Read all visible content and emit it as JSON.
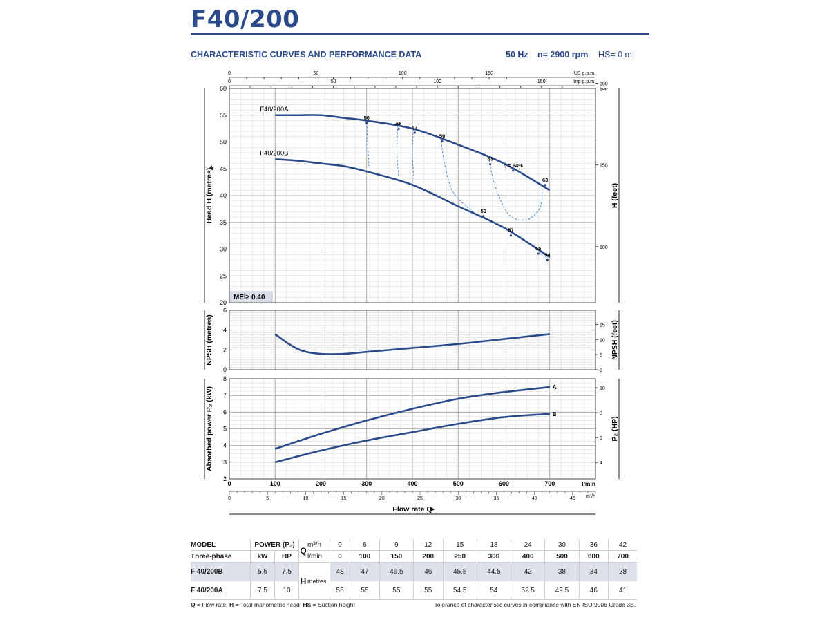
{
  "header": {
    "title": "F40/200",
    "subtitle": "CHARACTERISTIC CURVES AND PERFORMANCE DATA",
    "freq": "50 Hz",
    "speed": "n= 2900 rpm",
    "hs": "HS= 0 m"
  },
  "chart_data": [
    {
      "type": "line",
      "name": "head",
      "ylabel": "Head H  (metres)",
      "ylabel_right": "H  (feet)",
      "ylim": [
        20,
        60
      ],
      "yticks": [
        20,
        25,
        30,
        35,
        40,
        45,
        50,
        55,
        60
      ],
      "yticks_right": [
        100,
        150,
        200
      ],
      "yright_unit": "feet",
      "xlim": [
        0,
        800
      ],
      "top_axis_usgpm": {
        "ticks": [
          0,
          50,
          100,
          150
        ],
        "label": "US g.p.m."
      },
      "top_axis_impgpm": {
        "ticks": [
          0,
          50,
          100,
          150
        ],
        "label": "Imp g.p.m."
      },
      "series": [
        {
          "name": "F40/200A",
          "x": [
            100,
            150,
            200,
            250,
            300,
            400,
            500,
            600,
            700
          ],
          "y": [
            55,
            55,
            55,
            54.5,
            54,
            52.5,
            49.5,
            46,
            41
          ]
        },
        {
          "name": "F40/200B",
          "x": [
            100,
            150,
            200,
            250,
            300,
            400,
            500,
            600,
            700
          ],
          "y": [
            46.8,
            46.5,
            46,
            45.5,
            44.5,
            42,
            38,
            34,
            28.5
          ]
        }
      ],
      "efficiency_labels": [
        {
          "text": "50",
          "x": 300,
          "y": 54.2
        },
        {
          "text": "55",
          "x": 370,
          "y": 53.1
        },
        {
          "text": "57",
          "x": 405,
          "y": 52.4
        },
        {
          "text": "59",
          "x": 465,
          "y": 50.8
        },
        {
          "text": "63",
          "x": 570,
          "y": 46.5
        },
        {
          "text": "η = 64%",
          "x": 620,
          "y": 45.3
        },
        {
          "text": "63",
          "x": 690,
          "y": 42.6
        },
        {
          "text": "59",
          "x": 555,
          "y": 36.8
        },
        {
          "text": "57",
          "x": 615,
          "y": 33.2
        },
        {
          "text": "55",
          "x": 675,
          "y": 29.8
        },
        {
          "text": "54",
          "x": 695,
          "y": 28.6
        }
      ],
      "mei": "MEI≥ 0.40"
    },
    {
      "type": "line",
      "name": "npsh",
      "ylabel": "NPSH  (metres)",
      "ylabel_right": "NPSH  (feet)",
      "ylim": [
        0,
        6
      ],
      "yticks": [
        0,
        2,
        4,
        6
      ],
      "yticks_right": [
        0,
        5,
        10,
        15
      ],
      "xlim": [
        0,
        800
      ],
      "series": [
        {
          "name": "NPSH",
          "x": [
            100,
            130,
            160,
            200,
            250,
            300,
            400,
            500,
            600,
            700
          ],
          "y": [
            3.6,
            2.6,
            1.9,
            1.6,
            1.6,
            1.8,
            2.2,
            2.6,
            3.1,
            3.6
          ]
        }
      ]
    },
    {
      "type": "line",
      "name": "power",
      "ylabel": "Absorbed power  P₂  (kW)",
      "ylabel_right": "P₂  (HP)",
      "ylim": [
        2,
        8
      ],
      "yticks": [
        2,
        3,
        4,
        5,
        6,
        7,
        8
      ],
      "yticks_right": [
        4,
        6,
        8,
        10
      ],
      "xlim": [
        0,
        800
      ],
      "xticks_lmin": [
        0,
        100,
        200,
        300,
        400,
        500,
        600,
        700
      ],
      "x_unit": "l/min",
      "xticks_m3h": [
        0,
        5,
        10,
        15,
        20,
        25,
        30,
        35,
        40,
        45
      ],
      "x_unit_m3h": "m³/h",
      "xlabel": "Flow rate  Q",
      "series": [
        {
          "name": "A",
          "x": [
            100,
            200,
            300,
            400,
            500,
            600,
            700
          ],
          "y": [
            3.8,
            4.7,
            5.5,
            6.2,
            6.8,
            7.2,
            7.5
          ]
        },
        {
          "name": "B",
          "x": [
            100,
            200,
            300,
            400,
            500,
            600,
            700
          ],
          "y": [
            3.0,
            3.7,
            4.3,
            4.8,
            5.3,
            5.7,
            5.9
          ]
        }
      ]
    }
  ],
  "table": {
    "model_header": "MODEL",
    "phase_header": "Three-phase",
    "power_header": "POWER (P₂)",
    "kw": "kW",
    "hp": "HP",
    "q_label": "Q",
    "m3h_unit": "m³/h",
    "lmin_unit": "l/min",
    "h_label": "H",
    "h_unit": "metres",
    "m3h": [
      "0",
      "6",
      "9",
      "12",
      "15",
      "18",
      "24",
      "30",
      "36",
      "42"
    ],
    "lmin": [
      "0",
      "100",
      "150",
      "200",
      "250",
      "300",
      "400",
      "500",
      "600",
      "700"
    ],
    "rows": [
      {
        "model": "F 40/200B",
        "kw": "5.5",
        "hp": "7.5",
        "h": [
          "48",
          "47",
          "46.5",
          "46",
          "45.5",
          "44.5",
          "42",
          "38",
          "34",
          "28"
        ]
      },
      {
        "model": "F 40/200A",
        "kw": "7.5",
        "hp": "10",
        "h": [
          "56",
          "55",
          "55",
          "55",
          "54.5",
          "54",
          "52.5",
          "49.5",
          "46",
          "41"
        ]
      }
    ]
  },
  "footer": {
    "q_key": "Q",
    "q_def": "= Flow rate",
    "h_key": "H",
    "h_def": "= Total manometric head",
    "hs_key": "HS",
    "hs_def": "= Suction height",
    "tolerance": "Tolerance of characteristic curves in compliance with EN ISO 9906 Grade 3B."
  }
}
